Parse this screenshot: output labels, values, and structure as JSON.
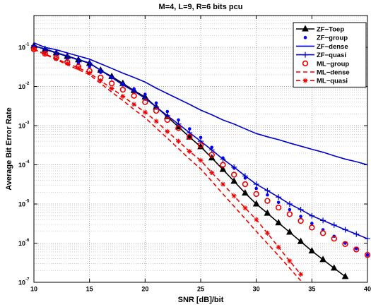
{
  "chart_data": {
    "type": "line",
    "title": "M=4, L=9, R=6 bits pcu",
    "x_label": "SNR [dB]/bit",
    "y_label": "Average Bit Error Rate",
    "log_y": true,
    "grid": true,
    "legend": "upper right",
    "xlim": [
      10,
      40
    ],
    "xticks": [
      10,
      15,
      20,
      25,
      30,
      35,
      40
    ],
    "ylim": [
      1e-07,
      0.65
    ],
    "yticks": [
      {
        "value": 1e-07,
        "label": "10",
        "exponent": "-7"
      },
      {
        "value": 1e-06,
        "label": "10",
        "exponent": "-6"
      },
      {
        "value": 1e-05,
        "label": "10",
        "exponent": "-5"
      },
      {
        "value": 0.0001,
        "label": "10",
        "exponent": "-4"
      },
      {
        "value": 0.001,
        "label": "10",
        "exponent": "-3"
      },
      {
        "value": 0.01,
        "label": "10",
        "exponent": "-2"
      },
      {
        "value": 0.1,
        "label": "10",
        "exponent": "-1"
      }
    ],
    "x": [
      10,
      11,
      12,
      13,
      14,
      15,
      16,
      17,
      18,
      19,
      20,
      21,
      22,
      23,
      24,
      25,
      26,
      27,
      28,
      29,
      30,
      31,
      32,
      33,
      34,
      35,
      36,
      37,
      38,
      39,
      40
    ],
    "series": [
      {
        "name": "ZF−Toep",
        "color": "#000000",
        "line": "solid",
        "marker": "triangle",
        "values": [
          0.11,
          0.089,
          0.072,
          0.059,
          0.048,
          0.039,
          0.026,
          0.018,
          0.012,
          0.0079,
          0.0054,
          0.003,
          0.0017,
          0.00093,
          0.00051,
          0.00029,
          0.00015,
          7.6e-05,
          3.8e-05,
          1.9e-05,
          1e-05,
          5.8e-06,
          3.3e-06,
          1.9e-06,
          1.1e-06,
          6.3e-07,
          3.8e-07,
          2.3e-07,
          1.4e-07,
          null,
          null
        ]
      },
      {
        "name": "ZF−group",
        "color": "#0000ff",
        "line": "none",
        "marker": "dot",
        "values": [
          0.1,
          0.079,
          0.063,
          0.05,
          0.04,
          0.032,
          0.023,
          0.017,
          0.012,
          0.0087,
          0.0063,
          0.0038,
          0.0023,
          0.0014,
          0.00083,
          0.0005,
          0.00028,
          0.00015,
          8.3e-05,
          4.6e-05,
          2.5e-05,
          1.7e-05,
          1.1e-05,
          7.2e-06,
          4.8e-06,
          3.2e-06,
          2.2e-06,
          1.5e-06,
          1e-06,
          7.2e-07,
          5e-07
        ]
      },
      {
        "name": "ZF−dense",
        "color": "#0000cc",
        "line": "solid",
        "marker": "none",
        "values": [
          0.13,
          0.1,
          0.087,
          0.072,
          0.06,
          0.05,
          0.038,
          0.029,
          0.022,
          0.017,
          0.013,
          0.0091,
          0.0066,
          0.0048,
          0.0035,
          0.0025,
          0.0019,
          0.0014,
          0.0011,
          0.00083,
          0.00063,
          0.00052,
          0.00044,
          0.00036,
          0.0003,
          0.00025,
          0.00021,
          0.00017,
          0.00014,
          0.00012,
          0.0001
        ]
      },
      {
        "name": "ZF−quasi",
        "color": "#0000cc",
        "line": "solid",
        "marker": "plus",
        "values": [
          0.11,
          0.091,
          0.074,
          0.06,
          0.049,
          0.04,
          0.026,
          0.017,
          0.011,
          0.0076,
          0.005,
          0.003,
          0.0018,
          0.0011,
          0.00066,
          0.0004,
          0.00024,
          0.00014,
          8.7e-05,
          5.2e-05,
          3.2e-05,
          2.2e-05,
          1.5e-05,
          1e-05,
          7.2e-06,
          5e-06,
          3.8e-06,
          2.9e-06,
          2.2e-06,
          1.7e-06,
          1.3e-06
        ]
      },
      {
        "name": "ML−group",
        "color": "#ee0000",
        "line": "none",
        "marker": "circle",
        "values": [
          0.089,
          0.069,
          0.054,
          0.042,
          0.032,
          0.025,
          0.017,
          0.012,
          0.0083,
          0.0058,
          0.004,
          0.0024,
          0.0014,
          0.00087,
          0.00052,
          0.00032,
          0.00018,
          0.0001,
          5.6e-05,
          3.2e-05,
          1.8e-05,
          1.2e-05,
          8.1e-06,
          5.5e-06,
          3.7e-06,
          2.5e-06,
          1.8e-06,
          1.3e-06,
          9.5e-07,
          6.9e-07,
          5e-07
        ]
      },
      {
        "name": "ML−dense",
        "color": "#ee0000",
        "line": "dashed",
        "marker": "none",
        "values": [
          0.089,
          0.066,
          0.049,
          0.036,
          0.027,
          0.02,
          0.012,
          0.0072,
          0.0044,
          0.0026,
          0.0016,
          0.00087,
          0.00048,
          0.00026,
          0.00014,
          7.9e-05,
          3.8e-05,
          1.8e-05,
          8.7e-06,
          4.2e-06,
          2e-06,
          9.8e-07,
          4.8e-07,
          2.3e-07,
          1.1e-07,
          null,
          null,
          null,
          null,
          null,
          null
        ]
      },
      {
        "name": "ML−quasi",
        "color": "#ee0000",
        "line": "dashed",
        "marker": "star",
        "values": [
          0.089,
          0.068,
          0.051,
          0.039,
          0.03,
          0.022,
          0.014,
          0.0089,
          0.0056,
          0.0035,
          0.0022,
          0.0013,
          0.00071,
          0.0004,
          0.00022,
          0.00013,
          6.3e-05,
          3.2e-05,
          1.6e-05,
          7.9e-06,
          4e-06,
          1.8e-06,
          7.9e-07,
          3.5e-07,
          1.6e-07,
          null,
          null,
          null,
          null,
          null,
          null
        ]
      }
    ]
  }
}
